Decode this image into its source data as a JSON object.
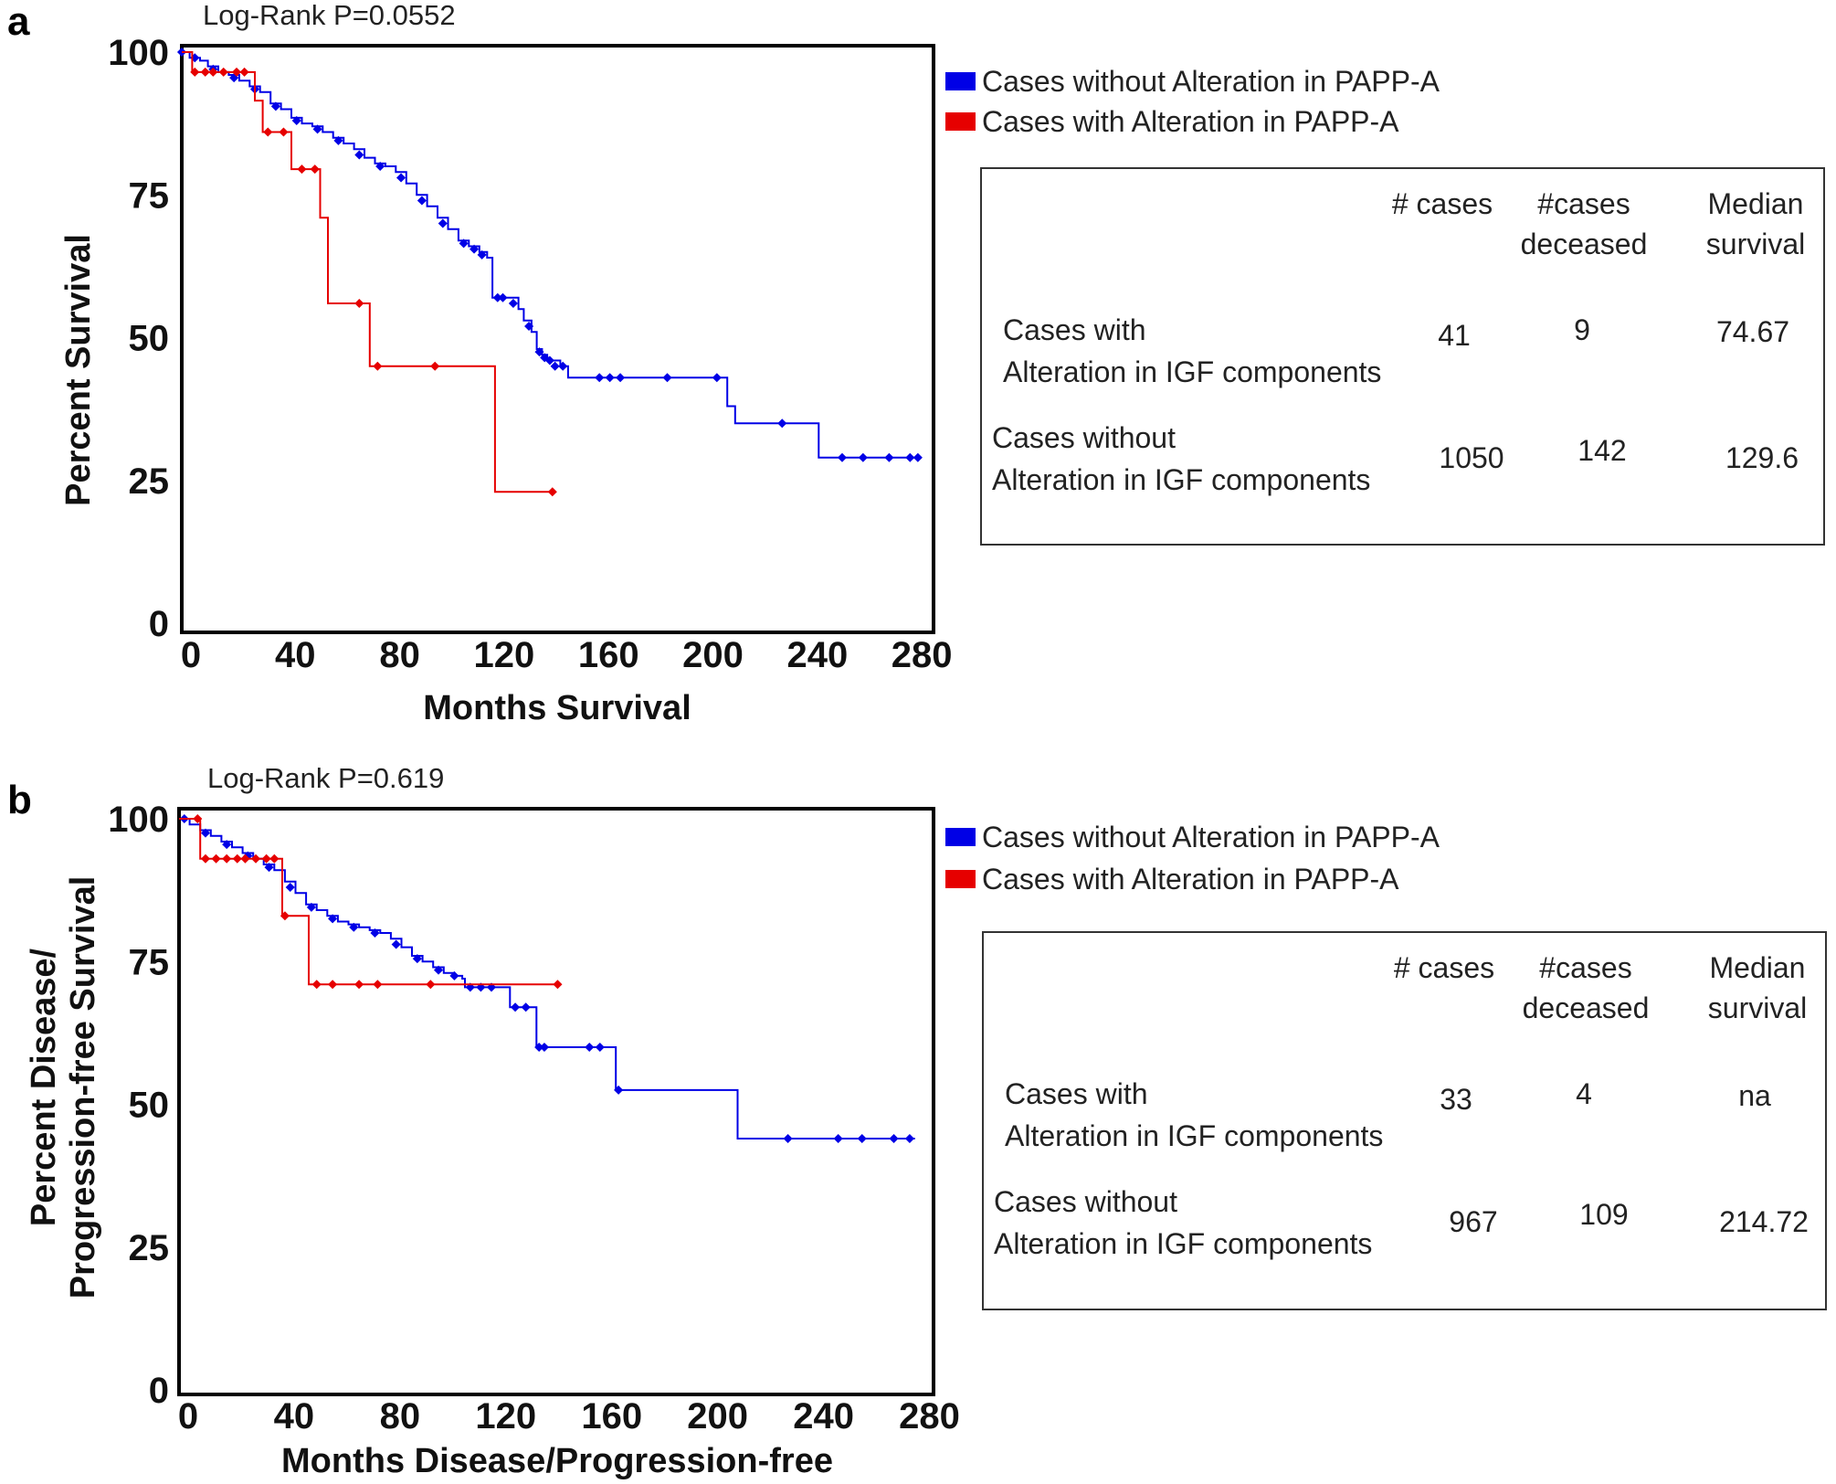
{
  "chart_data": [
    {
      "panel": "a",
      "type": "line",
      "subtype": "kaplan-meier",
      "title": "Log-Rank P=0.0552",
      "xlabel": "Months Survival",
      "ylabel": [
        "Percent Survival"
      ],
      "xlim": [
        0,
        288
      ],
      "ylim": [
        0,
        100
      ],
      "xticks": [
        0,
        40,
        80,
        120,
        160,
        200,
        240,
        280
      ],
      "yticks": [
        0,
        25,
        50,
        75,
        100
      ],
      "legend": [
        {
          "name": "Cases without Alteration in PAPP-A",
          "color": "#0000e6"
        },
        {
          "name": "Cases with Alteration in PAPP-A",
          "color": "#e60000"
        }
      ],
      "series": [
        {
          "name": "Cases without Alteration in PAPP-A",
          "color": "#0000e6",
          "steps": [
            [
              0,
              100
            ],
            [
              3,
              99
            ],
            [
              7,
              98.5
            ],
            [
              10,
              97.5
            ],
            [
              14,
              96.5
            ],
            [
              18,
              96
            ],
            [
              22,
              95
            ],
            [
              26,
              94
            ],
            [
              30,
              93
            ],
            [
              34,
              91
            ],
            [
              38,
              90
            ],
            [
              42,
              88.5
            ],
            [
              46,
              87.5
            ],
            [
              50,
              87
            ],
            [
              54,
              86
            ],
            [
              58,
              85
            ],
            [
              62,
              84
            ],
            [
              66,
              83
            ],
            [
              70,
              81.5
            ],
            [
              74,
              80.5
            ],
            [
              78,
              80
            ],
            [
              82,
              79
            ],
            [
              86,
              77
            ],
            [
              90,
              75
            ],
            [
              94,
              73
            ],
            [
              98,
              71
            ],
            [
              102,
              69
            ],
            [
              106,
              67
            ],
            [
              110,
              66
            ],
            [
              114,
              65
            ],
            [
              117,
              64
            ],
            [
              119,
              57
            ],
            [
              125,
              57
            ],
            [
              129,
              55
            ],
            [
              131,
              53
            ],
            [
              134,
              51
            ],
            [
              136,
              48
            ],
            [
              138,
              47
            ],
            [
              140,
              46
            ],
            [
              145,
              45
            ],
            [
              148,
              43
            ],
            [
              206,
              43
            ],
            [
              209,
              38
            ],
            [
              212,
              35
            ],
            [
              243,
              35
            ],
            [
              244,
              29
            ],
            [
              282,
              29
            ]
          ],
          "censored": [
            [
              0,
              100
            ],
            [
              5,
              99
            ],
            [
              12,
              97
            ],
            [
              20,
              95.5
            ],
            [
              28,
              93.5
            ],
            [
              36,
              90.5
            ],
            [
              44,
              88
            ],
            [
              52,
              86.5
            ],
            [
              60,
              84.5
            ],
            [
              68,
              82
            ],
            [
              76,
              80
            ],
            [
              84,
              78
            ],
            [
              92,
              74
            ],
            [
              100,
              70
            ],
            [
              108,
              66.5
            ],
            [
              112,
              65.5
            ],
            [
              115,
              64.5
            ],
            [
              121,
              57
            ],
            [
              123,
              57
            ],
            [
              127,
              56
            ],
            [
              133,
              52
            ],
            [
              137,
              47.5
            ],
            [
              139,
              46.5
            ],
            [
              141,
              46
            ],
            [
              143,
              45
            ],
            [
              146,
              45
            ],
            [
              160,
              43
            ],
            [
              164,
              43
            ],
            [
              168,
              43
            ],
            [
              186,
              43
            ],
            [
              205,
              43
            ],
            [
              230,
              35
            ],
            [
              253,
              29
            ],
            [
              261,
              29
            ],
            [
              271,
              29
            ],
            [
              279,
              29
            ],
            [
              282,
              29
            ]
          ]
        },
        {
          "name": "Cases with Alteration in PAPP-A",
          "color": "#e60000",
          "steps": [
            [
              0,
              100
            ],
            [
              4,
              96.5
            ],
            [
              25,
              96.5
            ],
            [
              28,
              91.5
            ],
            [
              31,
              86
            ],
            [
              41,
              86
            ],
            [
              42,
              79.5
            ],
            [
              52,
              79.5
            ],
            [
              53,
              71
            ],
            [
              56,
              56
            ],
            [
              69,
              56
            ],
            [
              72,
              45
            ],
            [
              119,
              45
            ],
            [
              120,
              23
            ],
            [
              142,
              23
            ]
          ],
          "censored": [
            [
              5,
              96.5
            ],
            [
              9,
              96.5
            ],
            [
              12,
              96.5
            ],
            [
              16,
              96.5
            ],
            [
              21,
              96.5
            ],
            [
              24,
              96.5
            ],
            [
              33,
              86
            ],
            [
              39,
              86
            ],
            [
              46,
              79.5
            ],
            [
              51,
              79.5
            ],
            [
              68,
              56
            ],
            [
              75,
              45
            ],
            [
              97,
              45
            ],
            [
              142,
              23
            ]
          ]
        }
      ],
      "summary_table": {
        "headers": [
          "",
          "# cases",
          "#cases deceased",
          "Median survival"
        ],
        "header_lines": [
          [
            "# cases"
          ],
          [
            "#cases",
            "deceased"
          ],
          [
            "Median",
            "survival"
          ]
        ],
        "rows": [
          {
            "label_lines": [
              "Cases with",
              "Alteration in IGF components"
            ],
            "cases": "41",
            "deceased": "9",
            "median": "74.67"
          },
          {
            "label_lines": [
              "Cases without",
              "Alteration in IGF components"
            ],
            "cases": "1050",
            "deceased": "142",
            "median": "129.6"
          }
        ]
      }
    },
    {
      "panel": "b",
      "type": "line",
      "subtype": "kaplan-meier",
      "title": "Log-Rank P=0.619",
      "xlabel": "Months Disease/Progression-free",
      "ylabel": [
        "Percent Disease/",
        "Progression-free Survival"
      ],
      "xlim": [
        0,
        285
      ],
      "ylim": [
        0,
        100
      ],
      "xticks": [
        0,
        40,
        80,
        120,
        160,
        200,
        240,
        280
      ],
      "yticks": [
        0,
        25,
        50,
        75,
        100
      ],
      "legend": [
        {
          "name": "Cases without Alteration in PAPP-A",
          "color": "#0000e6"
        },
        {
          "name": "Cases with Alteration in PAPP-A",
          "color": "#e60000"
        }
      ],
      "series": [
        {
          "name": "Cases without Alteration in PAPP-A",
          "color": "#0000e6",
          "steps": [
            [
              0,
              100
            ],
            [
              4,
              99
            ],
            [
              8,
              98
            ],
            [
              12,
              97
            ],
            [
              16,
              96
            ],
            [
              20,
              95
            ],
            [
              24,
              94
            ],
            [
              28,
              93
            ],
            [
              32,
              92
            ],
            [
              36,
              91
            ],
            [
              40,
              89
            ],
            [
              44,
              87
            ],
            [
              48,
              85
            ],
            [
              52,
              84
            ],
            [
              56,
              83
            ],
            [
              60,
              82
            ],
            [
              64,
              81.5
            ],
            [
              68,
              81
            ],
            [
              72,
              80.5
            ],
            [
              76,
              80
            ],
            [
              80,
              79
            ],
            [
              84,
              77.5
            ],
            [
              88,
              76
            ],
            [
              92,
              75
            ],
            [
              96,
              74
            ],
            [
              100,
              73
            ],
            [
              104,
              72.5
            ],
            [
              107,
              72
            ],
            [
              108,
              70.5
            ],
            [
              122,
              70.5
            ],
            [
              125,
              67
            ],
            [
              134,
              67
            ],
            [
              135,
              60
            ],
            [
              161,
              60
            ],
            [
              165,
              52.5
            ],
            [
              210,
              52.5
            ],
            [
              211,
              44
            ],
            [
              278,
              44
            ]
          ],
          "censored": [
            [
              2,
              100
            ],
            [
              10,
              97.5
            ],
            [
              18,
              95.5
            ],
            [
              26,
              93.5
            ],
            [
              34,
              91.5
            ],
            [
              42,
              88
            ],
            [
              50,
              84.5
            ],
            [
              58,
              82.5
            ],
            [
              66,
              81
            ],
            [
              74,
              80
            ],
            [
              82,
              78
            ],
            [
              90,
              75.5
            ],
            [
              98,
              73.5
            ],
            [
              104,
              72.5
            ],
            [
              110,
              70.5
            ],
            [
              114,
              70.5
            ],
            [
              118,
              70.5
            ],
            [
              127,
              67
            ],
            [
              131,
              67
            ],
            [
              136,
              60
            ],
            [
              138,
              60
            ],
            [
              155,
              60
            ],
            [
              159,
              60
            ],
            [
              166,
              52.5
            ],
            [
              230,
              44
            ],
            [
              249,
              44
            ],
            [
              258,
              44
            ],
            [
              270,
              44
            ],
            [
              276,
              44
            ]
          ]
        },
        {
          "name": "Cases with Alteration in PAPP-A",
          "color": "#e60000",
          "steps": [
            [
              0,
              100
            ],
            [
              7,
              100
            ],
            [
              8,
              93
            ],
            [
              38,
              93
            ],
            [
              39,
              83
            ],
            [
              48,
              83
            ],
            [
              49,
              71
            ],
            [
              143,
              71
            ]
          ],
          "censored": [
            [
              7,
              100
            ],
            [
              10,
              93
            ],
            [
              14,
              93
            ],
            [
              18,
              93
            ],
            [
              22,
              93
            ],
            [
              25,
              93
            ],
            [
              29,
              93
            ],
            [
              33,
              93
            ],
            [
              36,
              93
            ],
            [
              40,
              83
            ],
            [
              52,
              71
            ],
            [
              58,
              71
            ],
            [
              68,
              71
            ],
            [
              75,
              71
            ],
            [
              95,
              71
            ],
            [
              143,
              71
            ]
          ]
        }
      ],
      "summary_table": {
        "headers": [
          "",
          "# cases",
          "#cases deceased",
          "Median survival"
        ],
        "header_lines": [
          [
            "# cases"
          ],
          [
            "#cases",
            "deceased"
          ],
          [
            "Median",
            "survival"
          ]
        ],
        "rows": [
          {
            "label_lines": [
              "Cases with",
              "Alteration in IGF components"
            ],
            "cases": "33",
            "deceased": "4",
            "median": "na"
          },
          {
            "label_lines": [
              "Cases without",
              "Alteration in IGF components"
            ],
            "cases": "967",
            "deceased": "109",
            "median": "214.72"
          }
        ]
      }
    }
  ]
}
